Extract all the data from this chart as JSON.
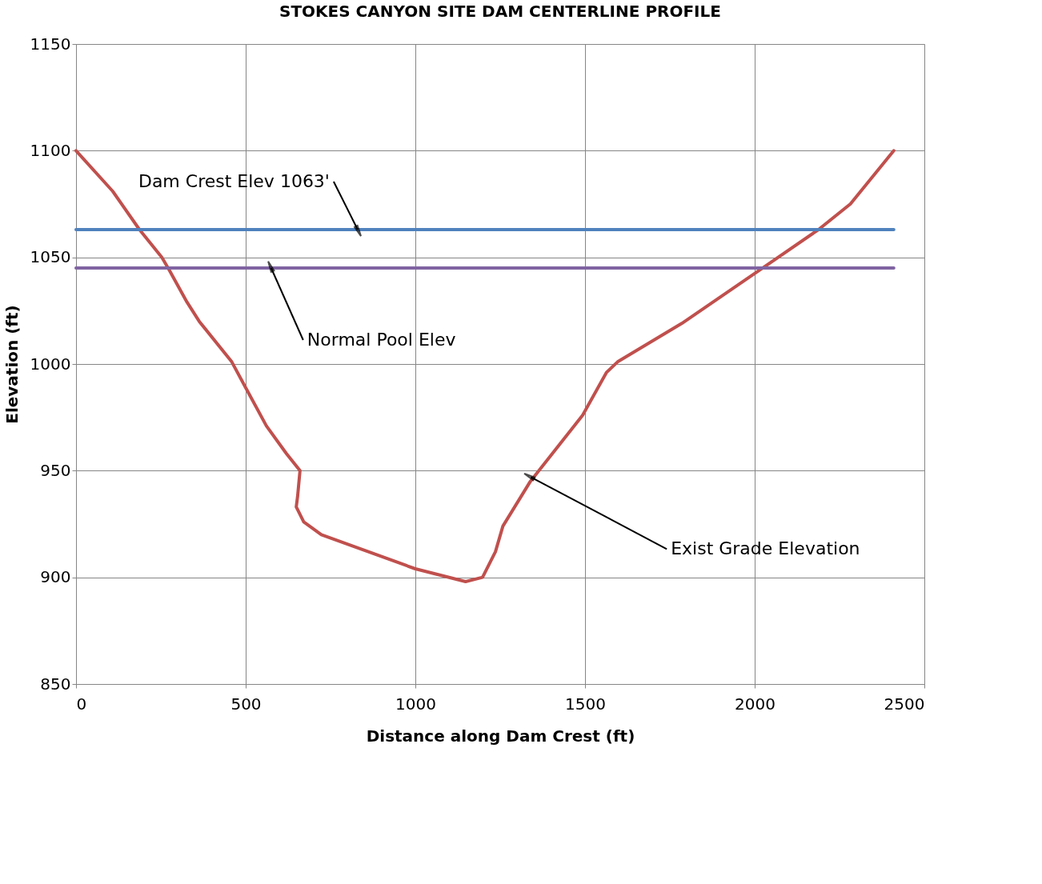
{
  "chart_data": {
    "type": "line",
    "title": "STOKES CANYON SITE DAM CENTERLINE PROFILE",
    "xlabel": "Distance along Dam Crest (ft)",
    "ylabel": "Elevation (ft)",
    "xlim": [
      0,
      2500
    ],
    "xticks": [
      0,
      500,
      1000,
      1500,
      2000,
      2500
    ],
    "ylim": [
      850,
      1150
    ],
    "yticks": [
      850,
      900,
      950,
      1000,
      1050,
      1100,
      1150
    ],
    "grid": true,
    "line_style": "solid",
    "marker": "none",
    "series": [
      {
        "color": "#c0504d",
        "x": [
          0,
          108,
          187,
          253,
          275,
          327,
          363,
          459,
          503,
          561,
          620,
          660,
          653,
          649,
          671,
          723,
          1000,
          1148,
          1198,
          1236,
          1258,
          1339,
          1493,
          1563,
          1596,
          1785,
          2005,
          2188,
          2282,
          2410
        ],
        "values": [
          1100,
          1081,
          1063,
          1050,
          1044,
          1029,
          1020,
          1001,
          988,
          971,
          958,
          950,
          938,
          933,
          926,
          920,
          904,
          898,
          900,
          912,
          924,
          945,
          976,
          996,
          1001,
          1019,
          1043,
          1063,
          1075,
          1100
        ]
      },
      {
        "color": "#4f81bd",
        "x": [
          0,
          2410
        ],
        "values": [
          1063,
          1063
        ]
      },
      {
        "color": "#8064a2",
        "x": [
          0,
          2410
        ],
        "values": [
          1045,
          1045
        ]
      }
    ],
    "annotations": [
      {
        "text": "Dam Crest Elev 1063'",
        "x": 830,
        "y": 1063
      },
      {
        "text": "Normal Pool Elev",
        "x": 575,
        "y": 1045
      },
      {
        "text": "Exist Grade Elevation",
        "x": 1340,
        "y": 947
      }
    ]
  }
}
